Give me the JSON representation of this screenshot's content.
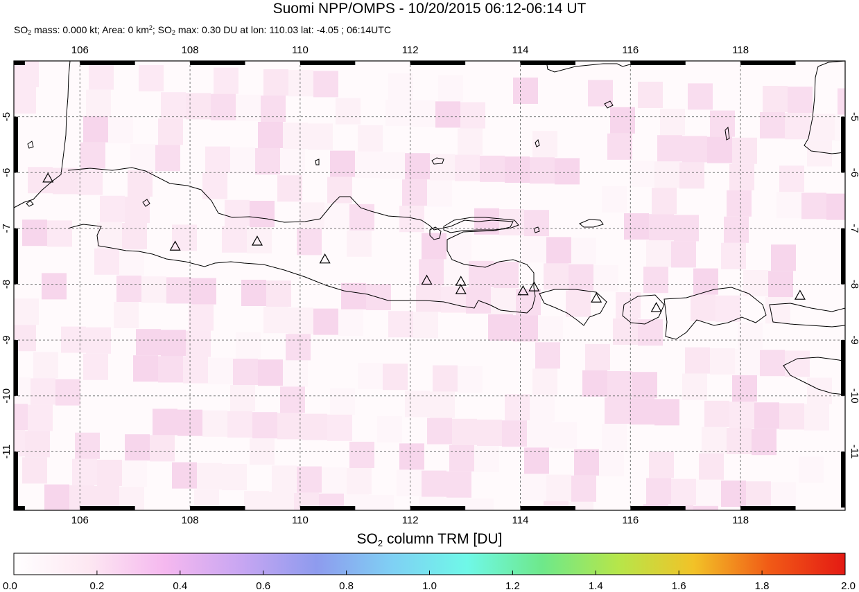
{
  "title": "Suomi NPP/OMPS - 10/20/2015 06:12-06:14 UT",
  "subtitle": {
    "t1": "SO",
    "s1": "2",
    "t2": " mass: 0.000 kt; Area: 0 km",
    "s2": "2",
    "t3": "; SO",
    "s3": "2",
    "t4": " max: 0.30 DU at lon: 110.03 lat: -4.05 ; 06:14UTC"
  },
  "map": {
    "lon_range": [
      104.8,
      119.9
    ],
    "lat_range": [
      -12.05,
      -4.0
    ],
    "lon_ticks": [
      "106",
      "108",
      "110",
      "112",
      "114",
      "116",
      "118"
    ],
    "lon_tick_values": [
      106,
      108,
      110,
      112,
      114,
      116,
      118
    ],
    "lat_ticks": [
      "-5",
      "-6",
      "-7",
      "-8",
      "-9",
      "-10",
      "-11"
    ],
    "lat_tick_values": [
      -5,
      -6,
      -7,
      -8,
      -9,
      -10,
      -11
    ],
    "volcanoes": [
      {
        "lon": 105.42,
        "lat": -6.1
      },
      {
        "lon": 107.73,
        "lat": -7.32
      },
      {
        "lon": 109.22,
        "lat": -7.23
      },
      {
        "lon": 110.45,
        "lat": -7.55
      },
      {
        "lon": 112.3,
        "lat": -7.93
      },
      {
        "lon": 112.92,
        "lat": -7.95
      },
      {
        "lon": 112.92,
        "lat": -8.1
      },
      {
        "lon": 114.05,
        "lat": -8.12
      },
      {
        "lon": 114.25,
        "lat": -8.05
      },
      {
        "lon": 115.38,
        "lat": -8.25
      },
      {
        "lon": 116.47,
        "lat": -8.42
      },
      {
        "lon": 119.08,
        "lat": -8.2
      }
    ]
  },
  "colorbar": {
    "title_t1": "SO",
    "title_s1": "2",
    "title_t2": " column TRM [DU]",
    "ticks": [
      "0.0",
      "0.2",
      "0.4",
      "0.6",
      "0.8",
      "1.0",
      "1.2",
      "1.4",
      "1.6",
      "1.8",
      "2.0"
    ],
    "tick_values": [
      0.0,
      0.2,
      0.4,
      0.6,
      0.8,
      1.0,
      1.2,
      1.4,
      1.6,
      1.8,
      2.0
    ],
    "colors": [
      "#ffffff",
      "#fde7f2",
      "#f5b8ef",
      "#c8a6f2",
      "#8e9bee",
      "#7fd0f4",
      "#6ff8e8",
      "#6ee88a",
      "#b6e64a",
      "#f2c227",
      "#f15a16",
      "#e41a14"
    ]
  }
}
